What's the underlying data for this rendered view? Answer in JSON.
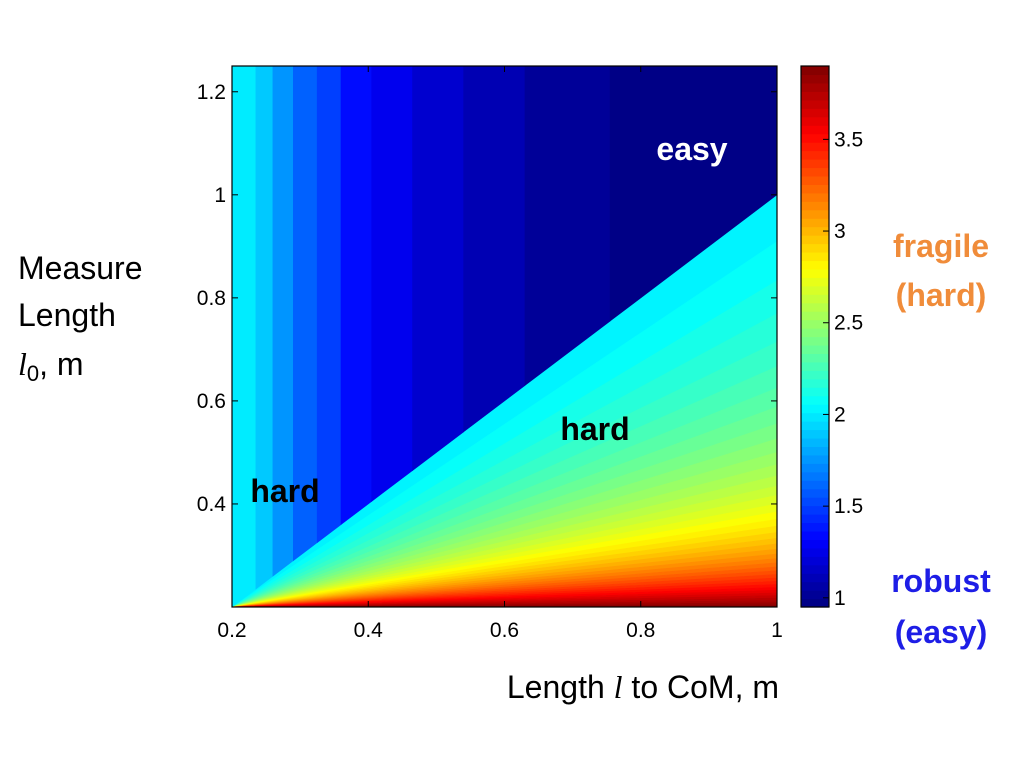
{
  "chart_data": {
    "type": "heatmap",
    "xlabel": {
      "prefix": "Length ",
      "var": "l",
      "suffix": " to CoM, m"
    },
    "ylabel": {
      "line1": "Measure",
      "line2": "Length",
      "var": "l",
      "sub": "0",
      "suffix": ", m"
    },
    "xlim": [
      0.2,
      1.0
    ],
    "ylim": [
      0.2,
      1.25
    ],
    "xticks": [
      "0.2",
      "0.4",
      "0.6",
      "0.8",
      "1"
    ],
    "yticks": [
      "0.4",
      "0.6",
      "0.8",
      "1",
      "1.2"
    ],
    "colorbar": {
      "colormap": "jet",
      "range": [
        0.95,
        3.9
      ],
      "ticks": [
        "1",
        "1.5",
        "2",
        "2.5",
        "3",
        "3.5"
      ]
    },
    "boundary": "y = x",
    "upper_region": {
      "description": "value depends only on x (vertical bands)",
      "x_bands": [
        {
          "x": [
            0.2,
            0.235
          ],
          "value": 2.0
        },
        {
          "x": [
            0.235,
            0.26
          ],
          "value": 1.9
        },
        {
          "x": [
            0.26,
            0.29
          ],
          "value": 1.75
        },
        {
          "x": [
            0.29,
            0.325
          ],
          "value": 1.6
        },
        {
          "x": [
            0.325,
            0.36
          ],
          "value": 1.5
        },
        {
          "x": [
            0.36,
            0.405
          ],
          "value": 1.35
        },
        {
          "x": [
            0.405,
            0.465
          ],
          "value": 1.27
        },
        {
          "x": [
            0.465,
            0.54
          ],
          "value": 1.18
        },
        {
          "x": [
            0.54,
            0.63
          ],
          "value": 1.1
        },
        {
          "x": [
            0.63,
            0.755
          ],
          "value": 1.02
        },
        {
          "x": [
            0.755,
            1.0
          ],
          "value": 0.97
        }
      ]
    },
    "lower_region": {
      "description": "value increases with x/y ratio, from about 2.0 at the diagonal to about 3.9 at the bottom-right corner",
      "value_at_diagonal": 2.0,
      "value_at_corner": 3.9
    },
    "annotations": [
      {
        "text": "easy",
        "x": 0.9,
        "y": 1.1,
        "color": "#ffffff"
      },
      {
        "text": "hard",
        "x": 0.7,
        "y": 0.61,
        "color": "#000000"
      },
      {
        "text": "hard",
        "x": 0.3,
        "y": 0.43,
        "color": "#000000"
      }
    ],
    "side_labels": [
      {
        "line1": "fragile",
        "line2": "(hard)",
        "color": "#f08c3a"
      },
      {
        "line1": "robust",
        "line2": "(easy)",
        "color": "#1e1ee6"
      }
    ]
  }
}
